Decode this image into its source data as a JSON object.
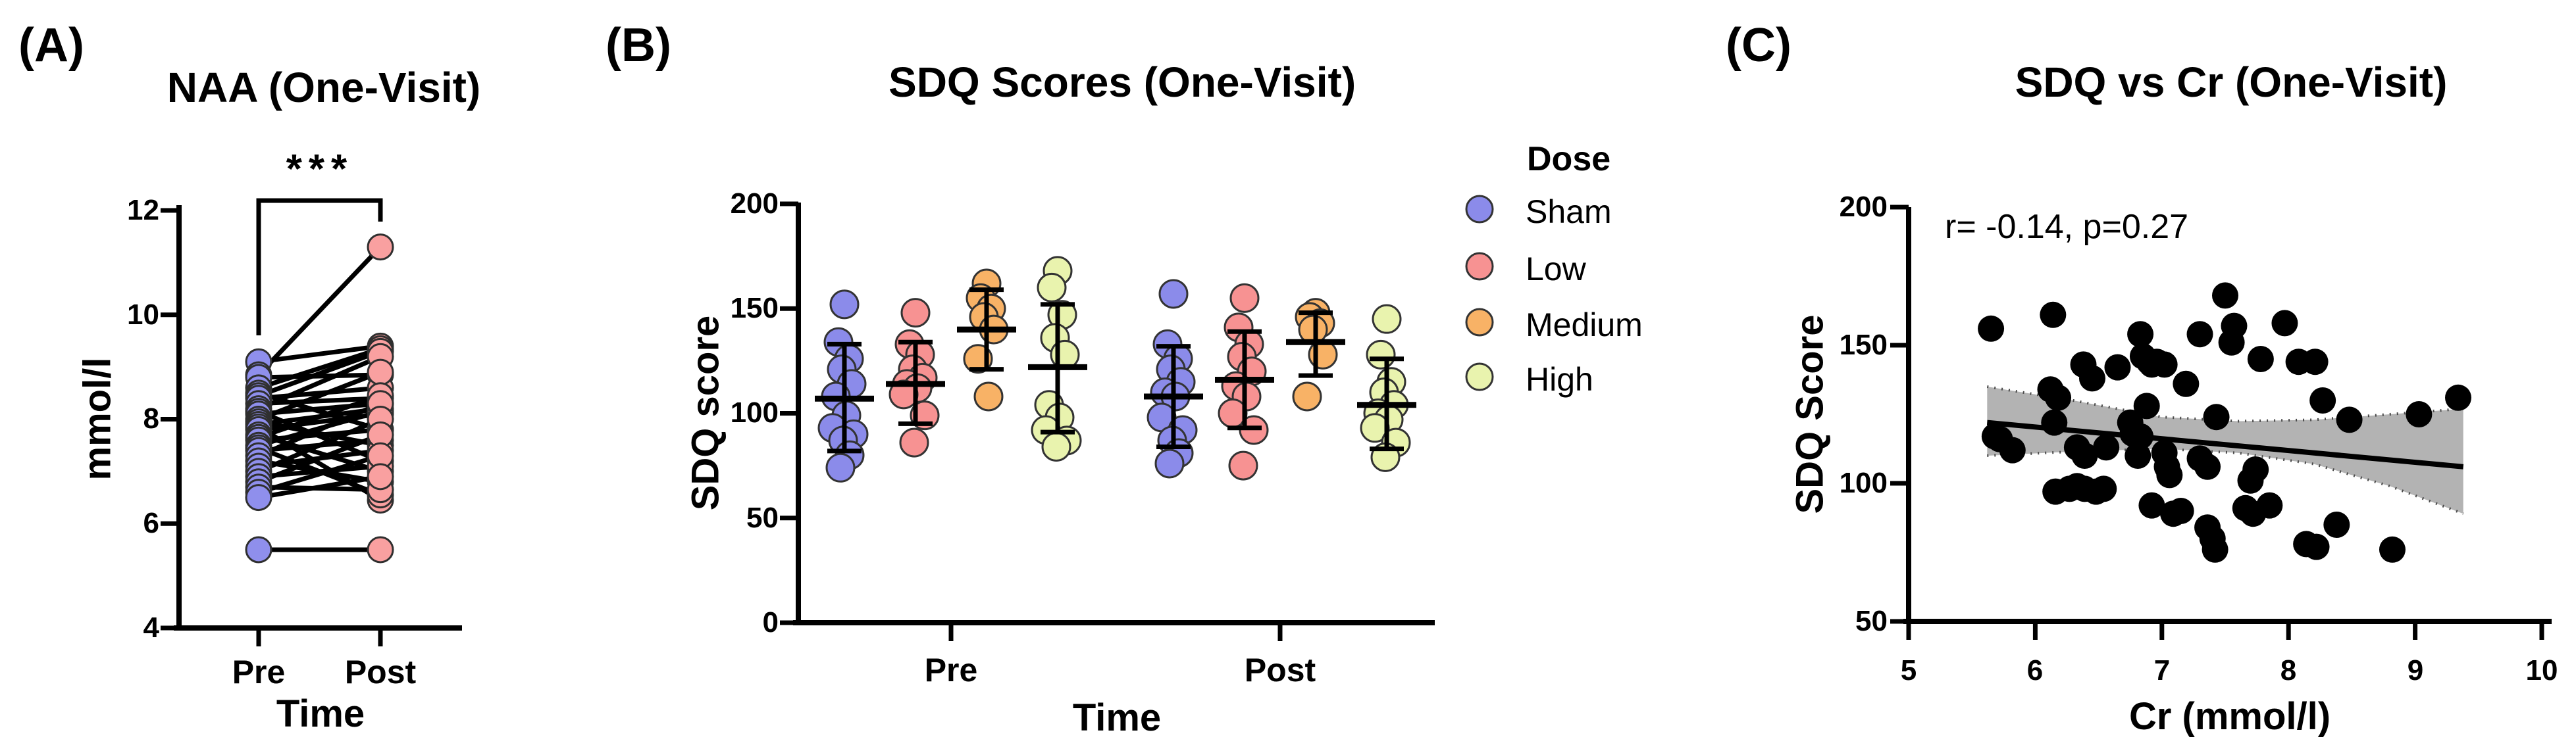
{
  "figure_background": "#ffffff",
  "chart_data": [
    {
      "id": "panelA",
      "type": "line",
      "subtype": "paired-before-after",
      "panel_label": "(A)",
      "title": "NAA (One-Visit)",
      "ylabel": "mmol/l",
      "xlabel": "Time",
      "categories": [
        "Pre",
        "Post"
      ],
      "ylim": [
        4,
        12
      ],
      "yticks": [
        12,
        10,
        8,
        6,
        4
      ],
      "significance": "***",
      "pre_color": "#8F8FEC",
      "post_color": "#F9A0A0",
      "marker_outline": "#2f2f2f",
      "line_color": "#000000",
      "pairs": [
        [
          9.1,
          9.4
        ],
        [
          8.85,
          11.3
        ],
        [
          8.8,
          8.85
        ],
        [
          8.6,
          9.35
        ],
        [
          8.5,
          7.8
        ],
        [
          8.45,
          9.3
        ],
        [
          8.4,
          8.6
        ],
        [
          8.3,
          8.4
        ],
        [
          8.2,
          9.2
        ],
        [
          8.15,
          7.2
        ],
        [
          8.1,
          8.3
        ],
        [
          8.0,
          8.9
        ],
        [
          7.95,
          7.5
        ],
        [
          7.9,
          8.2
        ],
        [
          7.85,
          6.45
        ],
        [
          7.8,
          8.1
        ],
        [
          7.7,
          7.0
        ],
        [
          7.65,
          8.45
        ],
        [
          7.6,
          7.8
        ],
        [
          7.5,
          8.15
        ],
        [
          7.45,
          6.55
        ],
        [
          7.4,
          7.6
        ],
        [
          7.3,
          8.3
        ],
        [
          7.2,
          6.8
        ],
        [
          7.1,
          7.4
        ],
        [
          7.0,
          8.0
        ],
        [
          6.9,
          7.1
        ],
        [
          6.8,
          7.7
        ],
        [
          6.7,
          6.65
        ],
        [
          6.6,
          7.3
        ],
        [
          6.5,
          6.9
        ],
        [
          5.5,
          5.5
        ]
      ]
    },
    {
      "id": "panelB",
      "type": "scatter",
      "subtype": "grouped-dot-plot-with-mean-sd",
      "panel_label": "(B)",
      "title": "SDQ Scores (One-Visit)",
      "ylabel": "SDQ score",
      "xlabel": "Time",
      "categories": [
        "Pre",
        "Post"
      ],
      "ylim": [
        0,
        200
      ],
      "yticks": [
        200,
        150,
        100,
        50,
        0
      ],
      "legend": {
        "title": "Dose",
        "entries": [
          {
            "label": "Sham",
            "color": "#8B8BEA"
          },
          {
            "label": "Low",
            "color": "#F79292"
          },
          {
            "label": "Medium",
            "color": "#F8B266"
          },
          {
            "label": "High",
            "color": "#E9F3AE"
          }
        ]
      },
      "marker_outline": "#333333",
      "groups": [
        {
          "time": "Pre",
          "dose": "Sham",
          "mean": 107,
          "sd_low": 82,
          "sd_high": 133,
          "values": [
            152,
            134,
            126,
            121,
            114,
            108,
            99,
            93,
            90,
            87,
            80,
            74
          ]
        },
        {
          "time": "Pre",
          "dose": "Low",
          "mean": 114,
          "sd_low": 95,
          "sd_high": 134,
          "values": [
            148,
            133,
            128,
            121,
            117,
            114,
            112,
            109,
            99,
            86
          ]
        },
        {
          "time": "Pre",
          "dose": "Medium",
          "mean": 140,
          "sd_low": 121,
          "sd_high": 159,
          "values": [
            162,
            155,
            150,
            146,
            140,
            126,
            108
          ]
        },
        {
          "time": "Pre",
          "dose": "High",
          "mean": 122,
          "sd_low": 91,
          "sd_high": 152,
          "values": [
            168,
            160,
            147,
            136,
            128,
            104,
            98,
            92,
            87,
            84
          ]
        },
        {
          "time": "Post",
          "dose": "Sham",
          "mean": 108,
          "sd_low": 84,
          "sd_high": 132,
          "values": [
            157,
            133,
            126,
            121,
            115,
            110,
            108,
            98,
            92,
            87,
            81,
            76
          ]
        },
        {
          "time": "Post",
          "dose": "Low",
          "mean": 116,
          "sd_low": 93,
          "sd_high": 139,
          "values": [
            155,
            141,
            133,
            127,
            120,
            113,
            108,
            100,
            92,
            75
          ]
        },
        {
          "time": "Post",
          "dose": "Medium",
          "mean": 134,
          "sd_low": 118,
          "sd_high": 148,
          "values": [
            148,
            146,
            143,
            140,
            128,
            108
          ]
        },
        {
          "time": "Post",
          "dose": "High",
          "mean": 104,
          "sd_low": 83,
          "sd_high": 126,
          "values": [
            145,
            128,
            115,
            110,
            104,
            100,
            97,
            93,
            86,
            79
          ]
        }
      ]
    },
    {
      "id": "panelC",
      "type": "scatter",
      "subtype": "scatter-with-regression-and-ci-band",
      "panel_label": "(C)",
      "title": "SDQ vs Cr (One-Visit)",
      "annotation": "r= -0.14, p=0.27",
      "ylabel": "SDQ Score",
      "xlabel": "Cr (mmol/l)",
      "xlim": [
        5,
        10
      ],
      "ylim": [
        50,
        200
      ],
      "xticks": [
        5,
        6,
        7,
        8,
        9,
        10
      ],
      "yticks": [
        200,
        150,
        100,
        50
      ],
      "point_color": "#000000",
      "band_fill": "#ABABAB",
      "band_edge": "#4a4a4a",
      "regression": {
        "x1": 5.62,
        "y1": 122,
        "x2": 9.38,
        "y2": 106
      },
      "band": {
        "upper": [
          [
            5.62,
            135
          ],
          [
            6.3,
            130
          ],
          [
            7.0,
            124
          ],
          [
            7.6,
            122.5
          ],
          [
            8.2,
            123
          ],
          [
            8.8,
            125
          ],
          [
            9.38,
            127
          ]
        ],
        "lower": [
          [
            5.62,
            110
          ],
          [
            6.3,
            111.5
          ],
          [
            7.0,
            112.5
          ],
          [
            7.6,
            111
          ],
          [
            8.2,
            107
          ],
          [
            8.8,
            99
          ],
          [
            9.38,
            89
          ]
        ]
      },
      "points": [
        [
          5.65,
          156
        ],
        [
          5.68,
          117
        ],
        [
          5.72,
          116
        ],
        [
          5.82,
          112
        ],
        [
          6.12,
          134
        ],
        [
          6.14,
          161
        ],
        [
          6.15,
          122
        ],
        [
          6.16,
          97
        ],
        [
          6.18,
          131
        ],
        [
          6.27,
          98
        ],
        [
          6.33,
          113
        ],
        [
          6.33,
          99
        ],
        [
          6.38,
          143
        ],
        [
          6.39,
          110
        ],
        [
          6.39,
          98
        ],
        [
          6.45,
          138
        ],
        [
          6.48,
          97
        ],
        [
          6.54,
          98
        ],
        [
          6.56,
          113
        ],
        [
          6.65,
          142
        ],
        [
          6.75,
          122
        ],
        [
          6.77,
          118
        ],
        [
          6.81,
          110
        ],
        [
          6.83,
          154
        ],
        [
          6.83,
          117
        ],
        [
          6.85,
          146
        ],
        [
          6.88,
          128
        ],
        [
          6.9,
          144
        ],
        [
          6.92,
          143
        ],
        [
          6.92,
          92
        ],
        [
          6.96,
          144
        ],
        [
          7.02,
          143
        ],
        [
          7.02,
          111
        ],
        [
          7.04,
          106
        ],
        [
          7.06,
          103
        ],
        [
          7.09,
          89
        ],
        [
          7.15,
          90
        ],
        [
          7.19,
          136
        ],
        [
          7.3,
          154
        ],
        [
          7.3,
          109
        ],
        [
          7.36,
          106
        ],
        [
          7.36,
          84
        ],
        [
          7.4,
          80
        ],
        [
          7.42,
          76
        ],
        [
          7.43,
          124
        ],
        [
          7.5,
          168
        ],
        [
          7.55,
          151
        ],
        [
          7.57,
          157
        ],
        [
          7.66,
          91
        ],
        [
          7.7,
          101
        ],
        [
          7.72,
          89
        ],
        [
          7.74,
          105
        ],
        [
          7.78,
          145
        ],
        [
          7.85,
          92
        ],
        [
          7.97,
          158
        ],
        [
          8.08,
          144
        ],
        [
          8.14,
          78
        ],
        [
          8.21,
          144
        ],
        [
          8.22,
          77
        ],
        [
          8.27,
          130
        ],
        [
          8.38,
          85
        ],
        [
          8.48,
          123
        ],
        [
          8.82,
          76
        ],
        [
          9.03,
          125
        ],
        [
          9.34,
          131
        ]
      ]
    }
  ]
}
